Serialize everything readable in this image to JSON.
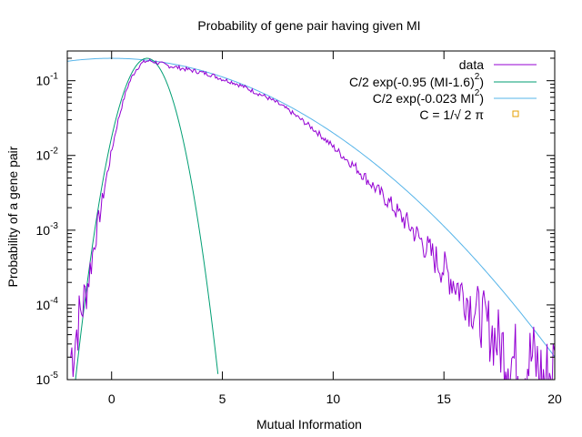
{
  "chart_data": {
    "type": "line",
    "title": "Probability of gene pair having given MI",
    "xlabel": "Mutual Information",
    "ylabel": "Probability of a gene pair",
    "xlim": [
      -2,
      20
    ],
    "ylim": [
      1e-05,
      0.25
    ],
    "yscale": "log",
    "grid": false,
    "legend_position": "top-right",
    "x_ticks": [
      {
        "value": 0,
        "label": "0"
      },
      {
        "value": 5,
        "label": "5"
      },
      {
        "value": 10,
        "label": "10"
      },
      {
        "value": 15,
        "label": "15"
      },
      {
        "value": 20,
        "label": "20"
      }
    ],
    "y_ticks": [
      {
        "value": 0.1,
        "base": "10",
        "exp": "-1"
      },
      {
        "value": 0.01,
        "base": "10",
        "exp": "-2"
      },
      {
        "value": 0.001,
        "base": "10",
        "exp": "-3"
      },
      {
        "value": 0.0001,
        "base": "10",
        "exp": "-4"
      },
      {
        "value": 1e-05,
        "base": "10",
        "exp": "-5"
      }
    ],
    "series": [
      {
        "name": "data",
        "style": "noisy-line",
        "color": "#9400d3",
        "x": [
          -1.85,
          -1.7,
          -1.5,
          -1.3,
          -1.1,
          -0.9,
          -0.7,
          -0.5,
          -0.3,
          -0.1,
          0.1,
          0.3,
          0.5,
          0.7,
          0.9,
          1.1,
          1.3,
          1.5,
          1.7,
          1.9,
          2.2,
          2.5,
          3,
          3.5,
          4,
          4.5,
          5,
          5.5,
          6,
          6.5,
          7,
          7.5,
          8,
          8.5,
          9,
          9.5,
          10,
          10.5,
          11,
          11.5,
          12,
          12.5,
          13,
          13.5,
          14,
          14.5,
          15,
          15.5,
          16,
          16.5,
          17,
          17.5,
          18,
          18.5,
          19,
          19.5,
          20
        ],
        "y": [
          2e-05,
          3e-05,
          6e-05,
          0.0001,
          0.00018,
          0.0004,
          0.0009,
          0.0018,
          0.004,
          0.008,
          0.016,
          0.03,
          0.05,
          0.08,
          0.11,
          0.14,
          0.165,
          0.18,
          0.185,
          0.18,
          0.17,
          0.16,
          0.15,
          0.14,
          0.13,
          0.12,
          0.105,
          0.095,
          0.082,
          0.07,
          0.06,
          0.05,
          0.04,
          0.031,
          0.024,
          0.018,
          0.013,
          0.0095,
          0.007,
          0.0049,
          0.0034,
          0.0024,
          0.0016,
          0.0011,
          0.0007,
          0.00045,
          0.0003,
          0.0002,
          0.00013,
          8e-05,
          5e-05,
          3e-05,
          2e-05,
          1.5e-05,
          2e-05,
          1e-05,
          1.5e-05
        ]
      },
      {
        "name_base": "C/2 exp(-0.95 (MI-1.6)",
        "name_sup": "2",
        "name_tail": ")",
        "style": "line",
        "color": "#009e73",
        "function": "0.5*0.3989*exp(-0.95*(x-1.6)^2)",
        "x": [
          -2,
          -1.5,
          -1,
          -0.5,
          0,
          0.5,
          1,
          1.6,
          2,
          2.5,
          3,
          3.5,
          4,
          4.5,
          4.8
        ],
        "y": [
          9e-07,
          2.13e-05,
          0.000322,
          0.00311,
          0.0174,
          0.0632,
          0.141,
          0.1995,
          0.1715,
          0.092,
          0.0311,
          0.00642,
          0.000837,
          6.83e-05,
          1.17e-05
        ]
      },
      {
        "name_base": "C/2 exp(-0.023 MI",
        "name_sup": "2",
        "name_tail": ")",
        "style": "line",
        "color": "#56b4e9",
        "function": "0.5*0.3989*exp(-0.023*x^2)",
        "x": [
          -2,
          -1,
          0,
          1,
          2,
          3,
          4,
          5,
          6,
          7,
          8,
          9,
          10,
          11,
          12,
          13,
          14,
          15,
          16,
          17,
          18,
          19,
          20
        ],
        "y": [
          0.182,
          0.195,
          0.1995,
          0.195,
          0.182,
          0.162,
          0.138,
          0.112,
          0.0872,
          0.0648,
          0.0459,
          0.0311,
          0.02,
          0.0123,
          0.00727,
          0.00407,
          0.00217,
          0.00112,
          0.000542,
          0.000253,
          0.000115,
          4.89e-05,
          2e-05
        ]
      },
      {
        "name": "C = 1/√ 2 π",
        "style": "point",
        "color": "#e69f00",
        "x": [],
        "y": []
      }
    ]
  }
}
